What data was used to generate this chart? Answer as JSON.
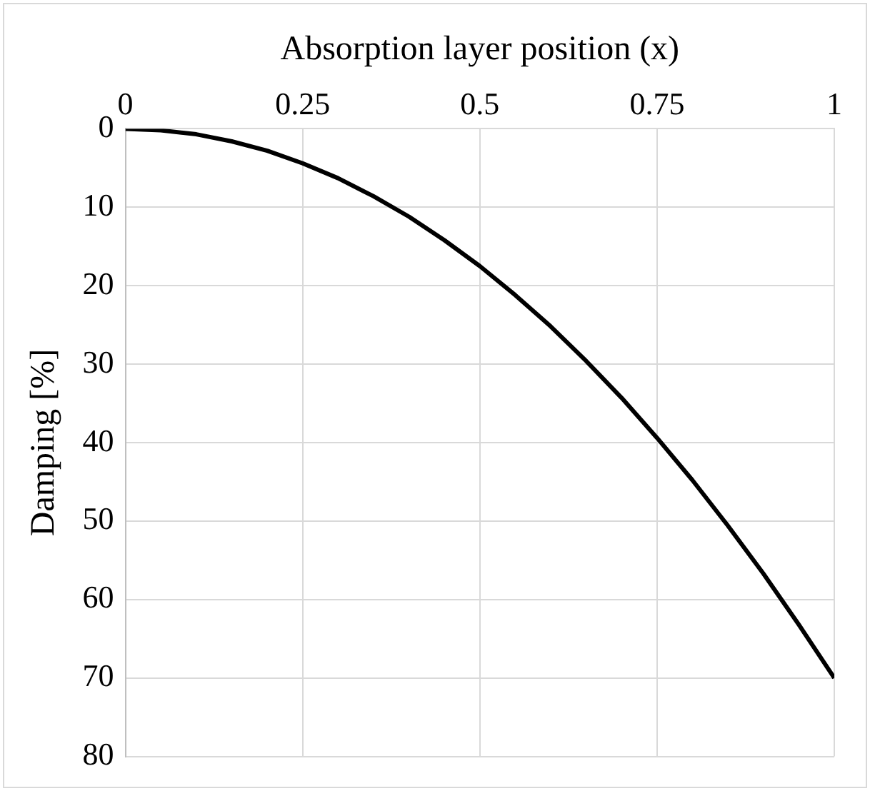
{
  "chart_data": {
    "type": "line",
    "xlabel": "Absorption layer position (x)",
    "ylabel": "Damping [%]",
    "x": [
      0,
      0.05,
      0.1,
      0.15,
      0.2,
      0.25,
      0.3,
      0.35,
      0.4,
      0.45,
      0.5,
      0.55,
      0.6,
      0.65,
      0.7,
      0.75,
      0.8,
      0.85,
      0.9,
      0.95,
      1
    ],
    "series": [
      {
        "color": "#000000",
        "values": [
          0,
          0.2,
          0.7,
          1.6,
          2.8,
          4.4,
          6.3,
          8.6,
          11.2,
          14.2,
          17.5,
          21.2,
          25.2,
          29.6,
          34.3,
          39.4,
          44.8,
          50.6,
          56.7,
          63.2,
          70
        ]
      }
    ],
    "xlim": [
      0,
      1
    ],
    "xticks": [
      0,
      0.25,
      0.5,
      0.75,
      1
    ],
    "ylim": [
      80,
      0
    ],
    "yticks": [
      0,
      10,
      20,
      30,
      40,
      50,
      60,
      70,
      80
    ],
    "grid": true,
    "legend": false,
    "marker": "none",
    "line_style": "solid"
  }
}
